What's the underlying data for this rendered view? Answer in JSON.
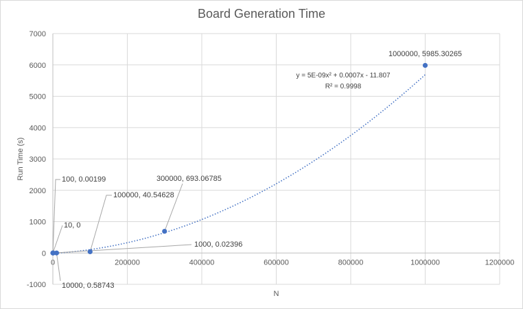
{
  "chart_data": {
    "type": "scatter",
    "title": "Board Generation Time",
    "xlabel": "N",
    "ylabel": "Run Time (s)",
    "xlim": [
      0,
      1200000
    ],
    "ylim": [
      -1000,
      7000
    ],
    "x_ticks": [
      0,
      200000,
      400000,
      600000,
      800000,
      1000000,
      1200000
    ],
    "y_ticks": [
      -1000,
      0,
      1000,
      2000,
      3000,
      4000,
      5000,
      6000,
      7000
    ],
    "grid": true,
    "legend": "none",
    "series": [
      {
        "points": [
          {
            "x": 10,
            "y": 0,
            "label": "10, 0"
          },
          {
            "x": 100,
            "y": 0.00199,
            "label": "100, 0.00199"
          },
          {
            "x": 1000,
            "y": 0.02396,
            "label": "1000, 0.02396"
          },
          {
            "x": 10000,
            "y": 0.58743,
            "label": "10000, 0.58743"
          },
          {
            "x": 100000,
            "y": 40.54628,
            "label": "100000, 40.54628"
          },
          {
            "x": 300000,
            "y": 693.06785,
            "label": "300000, 693.06785"
          },
          {
            "x": 1000000,
            "y": 5985.30265,
            "label": "1000000, 5985.30265"
          }
        ]
      }
    ],
    "trendline": {
      "type": "polynomial",
      "coefficients": {
        "a": 5e-09,
        "b": 0.0007,
        "c": -11.807
      },
      "equation": "y = 5E-09x² + 0.0007x - 11.807",
      "r_squared": "R² = 0.9998"
    },
    "colors": {
      "marker": "#4472c4",
      "trendline": "#4472c4",
      "grid": "#d9d9d9",
      "leader": "#a6a6a6",
      "text": "#595959"
    }
  }
}
